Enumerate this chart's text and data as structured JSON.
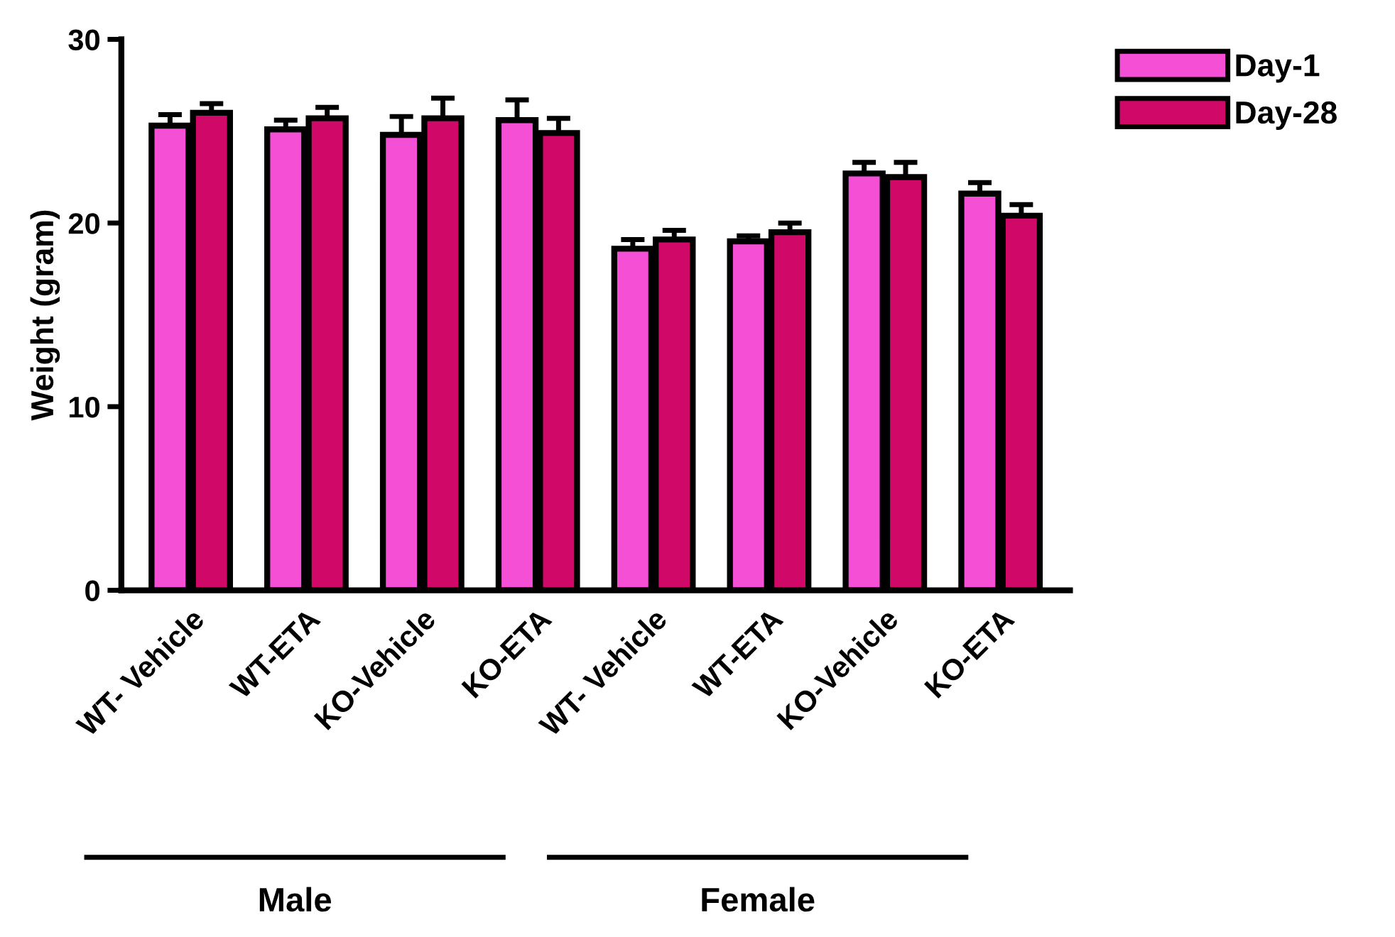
{
  "chart_data": {
    "type": "bar",
    "ylabel": "Weight (gram)",
    "categories": [
      "WT- Vehicle",
      "WT-ETA",
      "KO-Vehicle",
      "KO-ETA",
      "WT- Vehicle",
      "WT-ETA",
      "KO-Vehicle",
      "KO-ETA"
    ],
    "series": [
      {
        "name": "Day-1",
        "color": "#f54fd6",
        "values": [
          25.3,
          25.1,
          24.8,
          25.6,
          18.6,
          19.0,
          22.7,
          21.6
        ],
        "errors": [
          [
            25.3,
            25.9
          ],
          [
            25.1,
            25.6
          ],
          [
            24.8,
            25.8
          ],
          [
            25.6,
            26.7
          ],
          [
            18.6,
            19.1
          ],
          [
            19.0,
            19.3
          ],
          [
            22.7,
            23.3
          ],
          [
            21.6,
            22.2
          ]
        ]
      },
      {
        "name": "Day-28",
        "color": "#d00868",
        "values": [
          26.0,
          25.7,
          25.7,
          24.9,
          19.1,
          19.5,
          22.5,
          20.4
        ],
        "errors": [
          [
            26.0,
            26.5
          ],
          [
            25.7,
            26.3
          ],
          [
            25.7,
            26.8
          ],
          [
            24.9,
            25.7
          ],
          [
            19.1,
            19.6
          ],
          [
            19.5,
            20.0
          ],
          [
            22.5,
            23.3
          ],
          [
            20.4,
            21.0
          ]
        ]
      }
    ],
    "ylim": [
      0,
      30
    ],
    "yticks": [
      0,
      10,
      20,
      30
    ],
    "grid": false,
    "legend": "top right",
    "annotations": [
      "Male",
      "Female"
    ]
  }
}
